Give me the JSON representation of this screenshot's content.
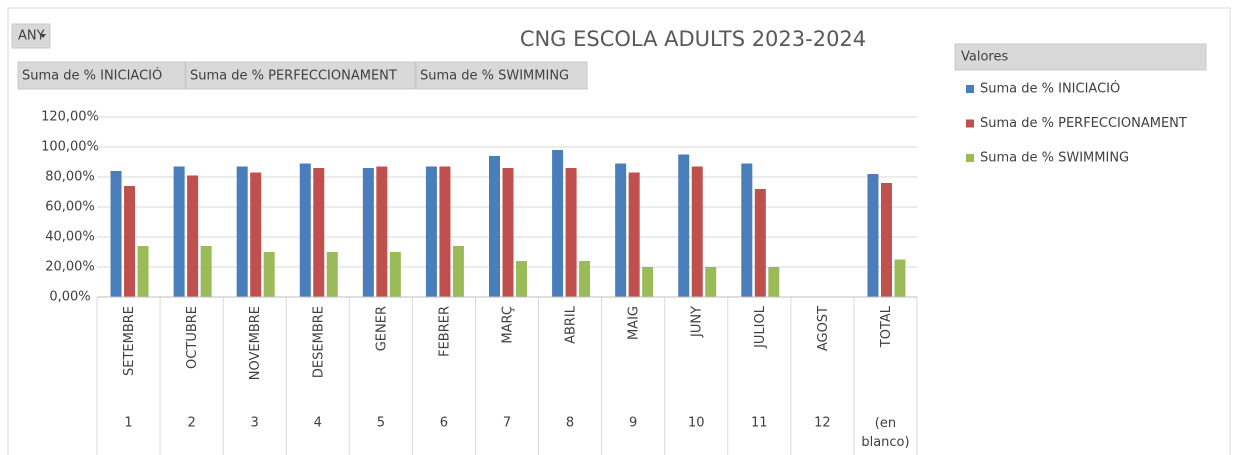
{
  "chart_data": {
    "type": "bar",
    "title": "CNG ESCOLA ADULTS 2023-2024",
    "filter_field": "ANY",
    "legend_title": "Valores",
    "categories": [
      "SETEMBRE",
      "OCTUBRE",
      "NOVEMBRE",
      "DESEMBRE",
      "GENER",
      "FEBRER",
      "MARÇ",
      "ABRIL",
      "MAIG",
      "JUNY",
      "JULIOL",
      "AGOST",
      "TOTAL"
    ],
    "outer_categories": [
      "1",
      "2",
      "3",
      "4",
      "5",
      "6",
      "7",
      "8",
      "9",
      "10",
      "11",
      "12",
      "(en blanco)"
    ],
    "series": [
      {
        "name": "Suma de % INICIACIÓ",
        "color": "#4a7ebb",
        "values": [
          84,
          87,
          87,
          89,
          86,
          87,
          94,
          98,
          89,
          95,
          89,
          null,
          82
        ]
      },
      {
        "name": "Suma de % PERFECCIONAMENT",
        "color": "#c0504d",
        "values": [
          74,
          81,
          83,
          86,
          87,
          87,
          86,
          86,
          83,
          87,
          72,
          null,
          76
        ]
      },
      {
        "name": "Suma de % SWIMMING",
        "color": "#9bbb59",
        "values": [
          34,
          34,
          30,
          30,
          30,
          34,
          24,
          24,
          20,
          20,
          20,
          null,
          25
        ]
      }
    ],
    "ylim": [
      0,
      120
    ],
    "yticks": [
      {
        "value": 0,
        "label": "0,00%"
      },
      {
        "value": 20,
        "label": "20,00%"
      },
      {
        "value": 40,
        "label": "40,00%"
      },
      {
        "value": 60,
        "label": "60,00%"
      },
      {
        "value": 80,
        "label": "80,00%"
      },
      {
        "value": 100,
        "label": "100,00%"
      },
      {
        "value": 120,
        "label": "120,00%"
      }
    ],
    "grid": true
  }
}
